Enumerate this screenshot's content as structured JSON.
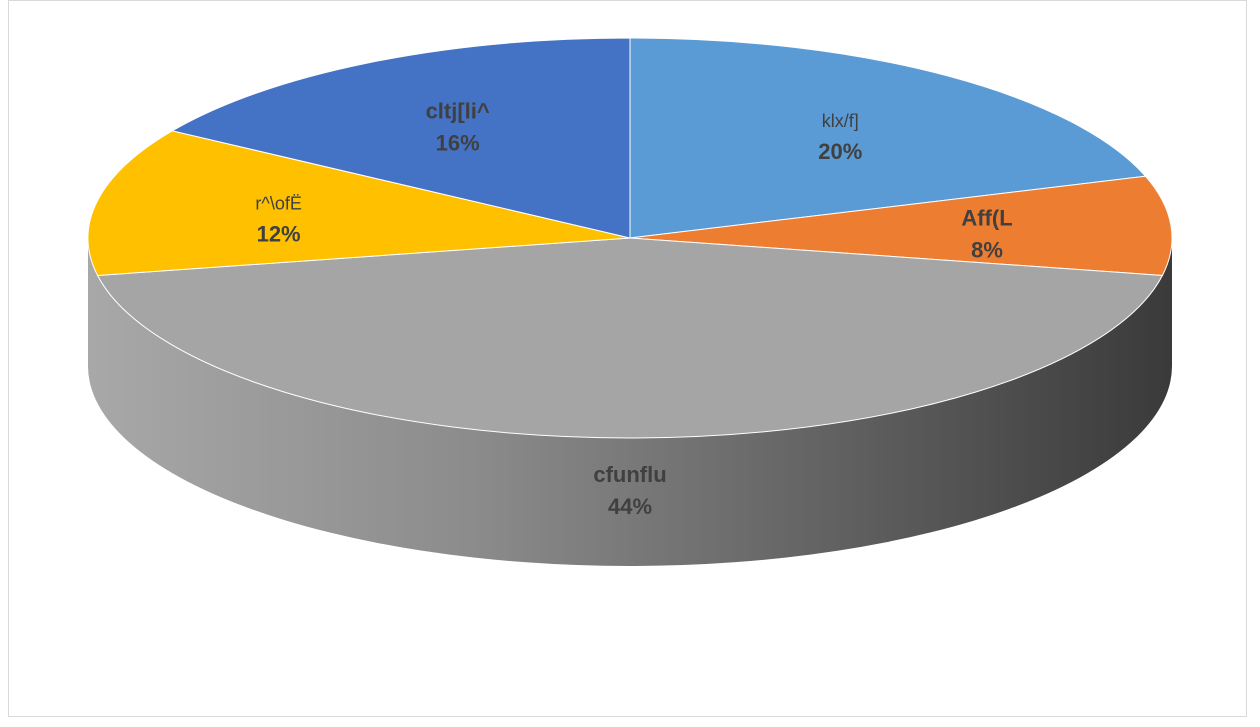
{
  "chart_data": {
    "type": "pie",
    "style": "3d",
    "title": "",
    "slices": [
      {
        "label": "klx/f]",
        "value": 20,
        "percent_label": "20%",
        "color": "#5b9bd5",
        "label_bold": false
      },
      {
        "label": "Aff(L",
        "value": 8,
        "percent_label": "8%",
        "color": "#ed7d31",
        "label_bold": true
      },
      {
        "label": "cfunflu",
        "value": 44,
        "percent_label": "44%",
        "color": "#a5a5a5",
        "label_bold": true
      },
      {
        "label": "r^\\ofË",
        "value": 12,
        "percent_label": "12%",
        "color": "#ffc000",
        "label_bold": false
      },
      {
        "label": "cltj[li^",
        "value": 16,
        "percent_label": "16%",
        "color": "#4472c4",
        "label_bold": true
      }
    ],
    "legend": "none"
  }
}
